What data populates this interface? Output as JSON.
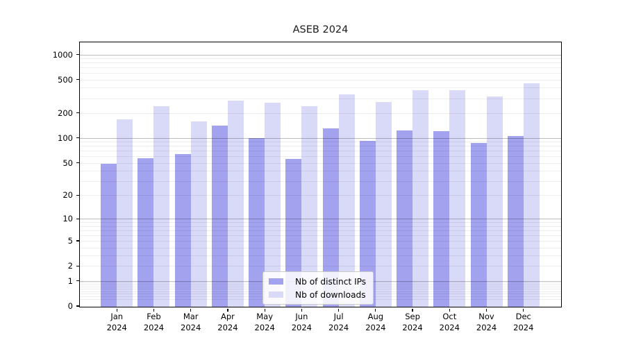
{
  "chart_data": {
    "type": "bar",
    "title": "ASEB 2024",
    "year": "2024",
    "categories": [
      "Jan 2024",
      "Feb 2024",
      "Mar 2024",
      "Apr 2024",
      "May 2024",
      "Jun 2024",
      "Jul 2024",
      "Aug 2024",
      "Sep 2024",
      "Oct 2024",
      "Nov 2024",
      "Dec 2024"
    ],
    "month_labels": [
      "Jan",
      "Feb",
      "Mar",
      "Apr",
      "May",
      "Jun",
      "Jul",
      "Aug",
      "Sep",
      "Oct",
      "Nov",
      "Dec"
    ],
    "series": [
      {
        "name": "Nb of distinct IPs",
        "color": "#a2a2ef",
        "values": [
          50,
          58,
          65,
          145,
          101,
          57,
          134,
          95,
          126,
          123,
          88,
          108
        ]
      },
      {
        "name": "Nb of downloads",
        "color": "#d9d9f8",
        "values": [
          172,
          245,
          162,
          287,
          271,
          245,
          340,
          277,
          383,
          384,
          321,
          460
        ]
      }
    ],
    "y_scale": "log1p",
    "y_ticks": [
      0,
      1,
      2,
      5,
      10,
      20,
      50,
      100,
      200,
      500,
      1000
    ],
    "y_minor_gridlines": [
      0.2,
      0.3,
      0.4,
      0.5,
      0.6,
      0.7,
      0.8,
      0.9,
      2,
      3,
      4,
      5,
      6,
      7,
      8,
      9,
      20,
      30,
      40,
      50,
      60,
      70,
      80,
      90,
      200,
      300,
      400,
      500,
      600,
      700,
      800,
      900
    ],
    "y_major_gridlines": [
      1,
      10,
      100,
      1000
    ],
    "grid": "on",
    "legend_position": "lower center"
  },
  "colors": {
    "background": "#ffffff",
    "bar_ips": "#a2a2ef",
    "bar_downloads": "#d9d9f8",
    "axis": "#000000",
    "grid_major": "#bdbdbd",
    "grid_minor": "#ededed",
    "legend_border": "#cccccc"
  }
}
